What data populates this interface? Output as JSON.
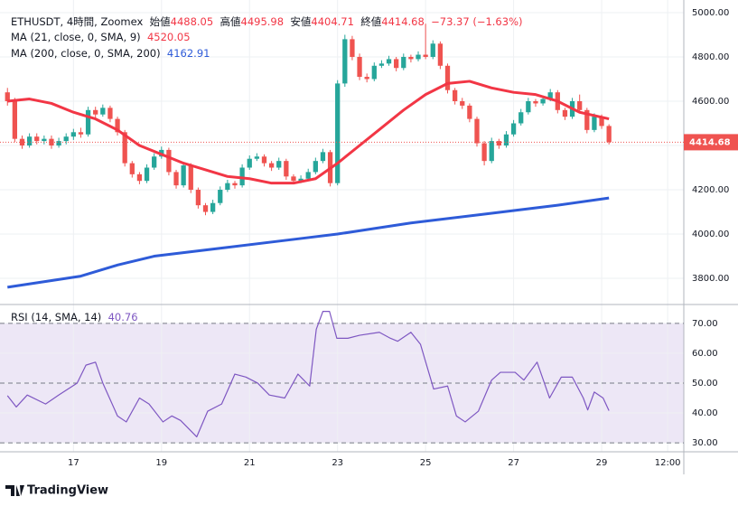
{
  "header": {
    "symbol": "ETHUSDT, 4時間, Zoomex",
    "open_label": "始値",
    "high_label": "高値",
    "low_label": "安値",
    "close_label": "終値",
    "change": "−73.37 (−1.63%)"
  },
  "chart_data": {
    "type": "candlestick",
    "up_color": "#26a69a",
    "down_color": "#ef5350",
    "candles": [
      [
        4640,
        4660,
        4580,
        4600
      ],
      [
        4600,
        4615,
        4415,
        4430
      ],
      [
        4430,
        4445,
        4385,
        4400
      ],
      [
        4400,
        4455,
        4390,
        4440
      ],
      [
        4440,
        4455,
        4405,
        4420
      ],
      [
        4420,
        4445,
        4405,
        4430
      ],
      [
        4430,
        4445,
        4385,
        4400
      ],
      [
        4400,
        4435,
        4390,
        4420
      ],
      [
        4420,
        4455,
        4405,
        4440
      ],
      [
        4440,
        4475,
        4425,
        4460
      ],
      [
        4460,
        4480,
        4435,
        4450
      ],
      [
        4450,
        4575,
        4440,
        4560
      ],
      [
        4560,
        4575,
        4525,
        4540
      ],
      [
        4540,
        4585,
        4530,
        4570
      ],
      [
        4570,
        4580,
        4505,
        4520
      ],
      [
        4520,
        4530,
        4445,
        4460
      ],
      [
        4460,
        4470,
        4305,
        4320
      ],
      [
        4320,
        4330,
        4255,
        4270
      ],
      [
        4270,
        4280,
        4225,
        4240
      ],
      [
        4240,
        4315,
        4230,
        4300
      ],
      [
        4300,
        4365,
        4290,
        4350
      ],
      [
        4350,
        4395,
        4340,
        4380
      ],
      [
        4380,
        4390,
        4265,
        4280
      ],
      [
        4280,
        4290,
        4205,
        4220
      ],
      [
        4220,
        4325,
        4210,
        4310
      ],
      [
        4310,
        4320,
        4185,
        4200
      ],
      [
        4200,
        4210,
        4115,
        4130
      ],
      [
        4130,
        4140,
        4085,
        4100
      ],
      [
        4100,
        4155,
        4090,
        4140
      ],
      [
        4140,
        4215,
        4130,
        4200
      ],
      [
        4200,
        4245,
        4190,
        4230
      ],
      [
        4230,
        4240,
        4205,
        4220
      ],
      [
        4220,
        4315,
        4210,
        4300
      ],
      [
        4300,
        4355,
        4290,
        4340
      ],
      [
        4340,
        4365,
        4330,
        4350
      ],
      [
        4350,
        4360,
        4305,
        4320
      ],
      [
        4320,
        4330,
        4285,
        4300
      ],
      [
        4300,
        4345,
        4290,
        4330
      ],
      [
        4330,
        4340,
        4245,
        4260
      ],
      [
        4260,
        4270,
        4225,
        4240
      ],
      [
        4240,
        4265,
        4230,
        4250
      ],
      [
        4250,
        4295,
        4240,
        4280
      ],
      [
        4280,
        4345,
        4270,
        4330
      ],
      [
        4330,
        4385,
        4320,
        4370
      ],
      [
        4370,
        4380,
        4215,
        4230
      ],
      [
        4230,
        4695,
        4220,
        4680
      ],
      [
        4680,
        4900,
        4665,
        4880
      ],
      [
        4880,
        4895,
        4785,
        4800
      ],
      [
        4800,
        4815,
        4695,
        4710
      ],
      [
        4710,
        4725,
        4685,
        4700
      ],
      [
        4700,
        4775,
        4690,
        4760
      ],
      [
        4760,
        4785,
        4750,
        4770
      ],
      [
        4770,
        4805,
        4760,
        4790
      ],
      [
        4790,
        4800,
        4735,
        4750
      ],
      [
        4750,
        4815,
        4740,
        4800
      ],
      [
        4800,
        4810,
        4775,
        4790
      ],
      [
        4790,
        4825,
        4780,
        4810
      ],
      [
        4810,
        4950,
        4790,
        4800
      ],
      [
        4800,
        4875,
        4790,
        4860
      ],
      [
        4860,
        4870,
        4745,
        4760
      ],
      [
        4760,
        4770,
        4635,
        4650
      ],
      [
        4650,
        4660,
        4585,
        4600
      ],
      [
        4600,
        4615,
        4565,
        4580
      ],
      [
        4580,
        4590,
        4505,
        4520
      ],
      [
        4520,
        4530,
        4395,
        4410
      ],
      [
        4410,
        4420,
        4310,
        4330
      ],
      [
        4330,
        4435,
        4320,
        4420
      ],
      [
        4420,
        4430,
        4385,
        4400
      ],
      [
        4400,
        4465,
        4390,
        4450
      ],
      [
        4450,
        4515,
        4440,
        4500
      ],
      [
        4500,
        4565,
        4490,
        4550
      ],
      [
        4550,
        4615,
        4540,
        4600
      ],
      [
        4600,
        4610,
        4575,
        4590
      ],
      [
        4590,
        4625,
        4580,
        4610
      ],
      [
        4610,
        4655,
        4600,
        4640
      ],
      [
        4640,
        4650,
        4545,
        4560
      ],
      [
        4560,
        4570,
        4515,
        4530
      ],
      [
        4530,
        4615,
        4520,
        4600
      ],
      [
        4600,
        4630,
        4545,
        4560
      ],
      [
        4560,
        4570,
        4455,
        4470
      ],
      [
        4470,
        4545,
        4460,
        4530
      ],
      [
        4530,
        4540,
        4475,
        4488.05
      ],
      [
        4488.05,
        4495.98,
        4404.71,
        4414.68
      ]
    ],
    "ylim": [
      3690,
      5057
    ],
    "yticks": [
      {
        "value": 3800,
        "label": "3800.00"
      },
      {
        "value": 4000,
        "label": "4000.00"
      },
      {
        "value": 4200,
        "label": "4200.00"
      },
      {
        "value": 4400,
        "label": "4400.00"
      },
      {
        "value": 4600,
        "label": "4600.00"
      },
      {
        "value": 4800,
        "label": "4800.00"
      },
      {
        "value": 5000,
        "label": "5000.00"
      }
    ],
    "xlim": [
      -0.4,
      92.2
    ],
    "xticks": [
      {
        "value": 9,
        "label": "17"
      },
      {
        "value": 21,
        "label": "19"
      },
      {
        "value": 33,
        "label": "21"
      },
      {
        "value": 45,
        "label": "23"
      },
      {
        "value": 57,
        "label": "25"
      },
      {
        "value": 69,
        "label": "27"
      },
      {
        "value": 81,
        "label": "29"
      },
      {
        "value": 90,
        "label": "12:00"
      }
    ],
    "grid": true,
    "moving_averages": [
      {
        "name": "MA (21, close, 0, SMA, 9)",
        "color": "#f23645",
        "x": [
          0,
          3,
          6,
          9,
          12,
          15,
          18,
          21,
          24,
          27,
          30,
          33,
          36,
          39,
          42,
          45,
          48,
          51,
          54,
          57,
          60,
          63,
          66,
          69,
          72,
          75,
          78,
          82
        ],
        "values": [
          4600,
          4610,
          4590,
          4550,
          4520,
          4470,
          4400,
          4360,
          4320,
          4290,
          4260,
          4250,
          4230,
          4230,
          4250,
          4320,
          4400,
          4480,
          4560,
          4630,
          4680,
          4690,
          4660,
          4640,
          4630,
          4600,
          4550,
          4520.05
        ]
      },
      {
        "name": "MA (200, close, 0, SMA, 200)",
        "color": "#2e5bd8",
        "x": [
          0,
          10,
          15,
          20,
          30,
          40,
          45,
          55,
          65,
          75,
          82
        ],
        "values": [
          3760,
          3810,
          3860,
          3900,
          3940,
          3980,
          4000,
          4050,
          4090,
          4130,
          4162.91
        ]
      }
    ],
    "rsi": {
      "name": "RSI (14, SMA, 14)",
      "color": "#7e57c2",
      "band_color": "#ede7f6",
      "x": [
        0,
        1.2,
        2.7,
        5.2,
        7,
        9.5,
        10.7,
        12,
        13,
        15,
        16.2,
        18,
        19.3,
        21.2,
        22.4,
        23.6,
        25.8,
        27.3,
        29.2,
        31,
        32.5,
        34.1,
        35.7,
        37.8,
        39.6,
        41.2,
        42.1,
        43,
        43.9,
        44.9,
        46.4,
        48,
        50.7,
        52.2,
        53.2,
        55,
        56.3,
        58.1,
        60,
        61.2,
        62.4,
        64.2,
        66,
        67.2,
        69.2,
        70.4,
        72.2,
        73.9,
        75.5,
        77,
        78.5,
        79.1,
        80,
        81.2,
        82
      ],
      "values": [
        45.8,
        42,
        46,
        43,
        46,
        50,
        56,
        57,
        50,
        39,
        37,
        45,
        43,
        37,
        39,
        37.5,
        32,
        40.6,
        43,
        53,
        52,
        50,
        46,
        45,
        53,
        49,
        68,
        74,
        74,
        65,
        65,
        66,
        67,
        65,
        64,
        67,
        63,
        48,
        49,
        39,
        37,
        40.6,
        51,
        53.6,
        53.6,
        51,
        57,
        45,
        52,
        52,
        45,
        41,
        47,
        45,
        40.76
      ],
      "ylim": [
        27,
        76
      ],
      "yticks": [
        {
          "value": 30,
          "label": "30.00"
        },
        {
          "value": 40,
          "label": "40.00"
        },
        {
          "value": 50,
          "label": "50.00"
        },
        {
          "value": 60,
          "label": "60.00"
        },
        {
          "value": 70,
          "label": "70.00"
        }
      ],
      "levels": [
        30,
        50,
        70
      ]
    }
  },
  "footer": "TradingView"
}
